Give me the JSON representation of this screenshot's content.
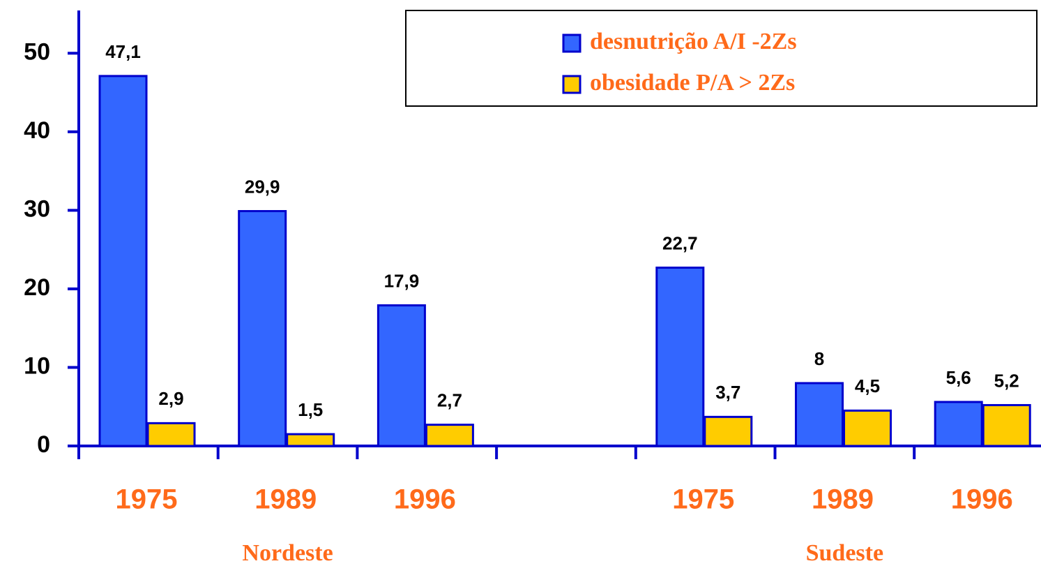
{
  "chart_data": {
    "type": "bar",
    "categories": [
      "1975",
      "1989",
      "1996",
      null,
      "1975",
      "1989",
      "1996"
    ],
    "group_labels": [
      "Nordeste",
      "Sudeste"
    ],
    "series": [
      {
        "name": "desnutrição A/I -2Zs",
        "color": "#3366ff",
        "values": [
          47.1,
          29.9,
          17.9,
          null,
          22.7,
          8,
          5.6
        ],
        "value_labels": [
          "47,1",
          "29,9",
          "17,9",
          null,
          "22,7",
          "8",
          "5,6"
        ]
      },
      {
        "name": "obesidade P/A > 2Zs",
        "color": "#ffcc00",
        "values": [
          2.9,
          1.5,
          2.7,
          null,
          3.7,
          4.5,
          5.2
        ],
        "value_labels": [
          "2,9",
          "1,5",
          "2,7",
          null,
          "3,7",
          "4,5",
          "5,2"
        ]
      }
    ],
    "ylim": [
      0,
      55
    ],
    "yticks": [
      0,
      10,
      20,
      30,
      40,
      50
    ],
    "legend": "top-right"
  }
}
